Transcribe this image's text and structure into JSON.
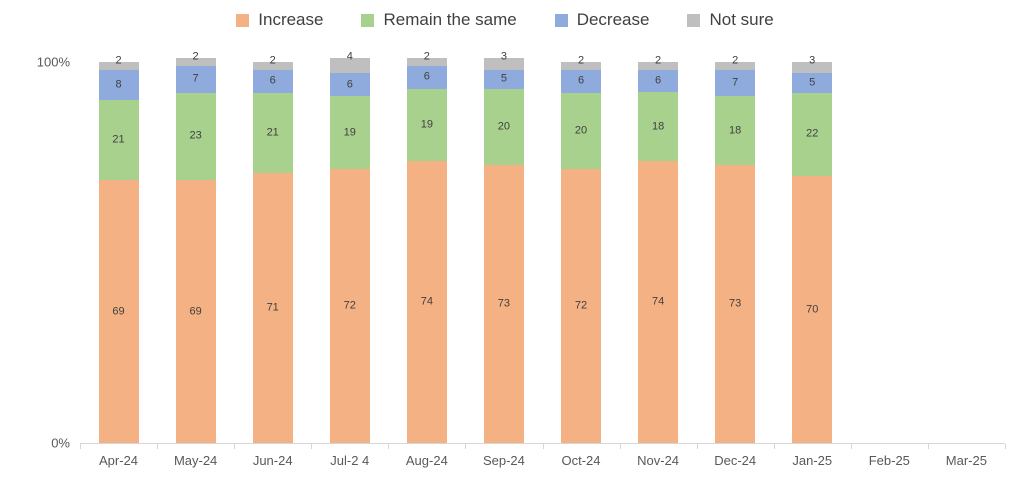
{
  "chart_data": {
    "type": "bar",
    "stacked": true,
    "title": "",
    "legend_position": "top",
    "grid": false,
    "ylim": [
      0,
      100
    ],
    "y_axis_labels": {
      "top": "100%",
      "bottom": "0%"
    },
    "categories": [
      "Apr-24",
      "May-24",
      "Jun-24",
      "Jul-2 4",
      "Aug-24",
      "Sep-24",
      "Oct-24",
      "Nov-24",
      "Dec-24",
      "Jan-25",
      "Feb-25",
      "Mar-25"
    ],
    "series": [
      {
        "name": "Increase",
        "color": "#F4B183",
        "values": [
          69,
          69,
          71,
          72,
          74,
          73,
          72,
          74,
          73,
          70,
          null,
          null
        ]
      },
      {
        "name": "Remain the same",
        "color": "#A9D18E",
        "values": [
          21,
          23,
          21,
          19,
          19,
          20,
          20,
          18,
          18,
          22,
          null,
          null
        ]
      },
      {
        "name": "Decrease",
        "color": "#8FAADC",
        "values": [
          8,
          7,
          6,
          6,
          6,
          5,
          6,
          6,
          7,
          5,
          null,
          null
        ]
      },
      {
        "name": "Not sure",
        "color": "#BFBFBF",
        "values": [
          2,
          2,
          2,
          4,
          2,
          3,
          2,
          2,
          2,
          3,
          null,
          null
        ]
      }
    ]
  }
}
